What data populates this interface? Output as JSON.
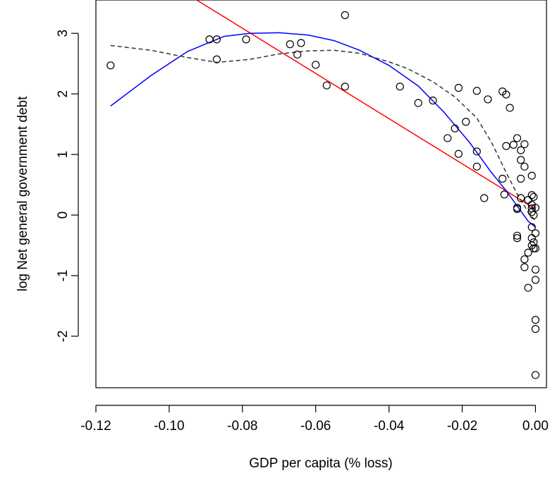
{
  "chart_data": {
    "type": "scatter",
    "title": "",
    "xlabel": "GDP per capita (% loss)",
    "ylabel": "log Net general government debt",
    "xlim": [
      -0.12,
      0.003
    ],
    "ylim": [
      -2.85,
      3.55
    ],
    "xticks": [
      -0.12,
      -0.1,
      -0.08,
      -0.06,
      -0.04,
      -0.02,
      0.0
    ],
    "xtick_labels": [
      "-0.12",
      "-0.10",
      "-0.08",
      "-0.06",
      "-0.04",
      "-0.02",
      "0.00"
    ],
    "yticks": [
      -2,
      -1,
      0,
      1,
      2,
      3
    ],
    "ytick_labels": [
      "-2",
      "-1",
      "0",
      "1",
      "2",
      "3"
    ],
    "grid": false,
    "legend": "none",
    "points": [
      [
        -0.116,
        2.47
      ],
      [
        -0.089,
        2.9
      ],
      [
        -0.087,
        2.9
      ],
      [
        -0.087,
        2.57
      ],
      [
        -0.079,
        2.9
      ],
      [
        -0.067,
        2.82
      ],
      [
        -0.065,
        2.65
      ],
      [
        -0.064,
        2.84
      ],
      [
        -0.06,
        2.48
      ],
      [
        -0.057,
        2.14
      ],
      [
        -0.052,
        3.3
      ],
      [
        -0.052,
        2.12
      ],
      [
        -0.037,
        2.12
      ],
      [
        -0.032,
        1.85
      ],
      [
        -0.028,
        1.89
      ],
      [
        -0.024,
        1.27
      ],
      [
        -0.022,
        1.43
      ],
      [
        -0.021,
        2.1
      ],
      [
        -0.021,
        1.01
      ],
      [
        -0.019,
        1.54
      ],
      [
        -0.016,
        2.05
      ],
      [
        -0.016,
        1.05
      ],
      [
        -0.016,
        0.8
      ],
      [
        -0.014,
        0.28
      ],
      [
        -0.013,
        1.91
      ],
      [
        -0.009,
        0.6
      ],
      [
        -0.009,
        2.04
      ],
      [
        -0.008,
        1.99
      ],
      [
        -0.008,
        1.14
      ],
      [
        -0.0085,
        0.34
      ],
      [
        -0.007,
        1.77
      ],
      [
        -0.006,
        1.16
      ],
      [
        -0.005,
        1.27
      ],
      [
        -0.005,
        0.1
      ],
      [
        -0.005,
        0.12
      ],
      [
        -0.005,
        -0.34
      ],
      [
        -0.005,
        -0.38
      ],
      [
        -0.004,
        1.07
      ],
      [
        -0.004,
        0.91
      ],
      [
        -0.004,
        0.6
      ],
      [
        -0.004,
        0.28
      ],
      [
        -0.003,
        1.17
      ],
      [
        -0.003,
        0.8
      ],
      [
        -0.003,
        -0.73
      ],
      [
        -0.003,
        -0.86
      ],
      [
        -0.002,
        -0.62
      ],
      [
        -0.002,
        -1.2
      ],
      [
        -0.002,
        0.25
      ],
      [
        -0.001,
        0.65
      ],
      [
        -0.001,
        0.33
      ],
      [
        -0.001,
        0.17
      ],
      [
        -0.001,
        0.11
      ],
      [
        -0.001,
        0.05
      ],
      [
        -0.001,
        -0.2
      ],
      [
        -0.001,
        -0.38
      ],
      [
        -0.001,
        -0.5
      ],
      [
        -0.0005,
        0.3
      ],
      [
        -0.0005,
        0.0
      ],
      [
        -0.0005,
        -0.45
      ],
      [
        -0.0005,
        -0.55
      ],
      [
        0.0,
        0.12
      ],
      [
        0.0,
        -0.3
      ],
      [
        0.0,
        -0.9
      ],
      [
        0.0,
        -1.07
      ],
      [
        0.0,
        -1.73
      ],
      [
        0.0,
        -1.88
      ],
      [
        0.0,
        -2.64
      ],
      [
        0.0,
        -0.55
      ]
    ],
    "lines": [
      {
        "color": "#ff0000",
        "style": "solid",
        "x": [
          -0.0925,
          0.0
        ],
        "y": [
          3.55,
          0.1
        ]
      },
      {
        "color": "#0000ff",
        "style": "solid",
        "x": [
          -0.116,
          -0.105,
          -0.095,
          -0.085,
          -0.078,
          -0.07,
          -0.062,
          -0.055,
          -0.048,
          -0.04,
          -0.032,
          -0.025,
          -0.018,
          -0.012,
          -0.008,
          -0.005,
          -0.002,
          0.0
        ],
        "y": [
          1.8,
          2.3,
          2.7,
          2.95,
          3.0,
          3.01,
          2.97,
          2.88,
          2.72,
          2.47,
          2.13,
          1.7,
          1.2,
          0.7,
          0.4,
          0.15,
          -0.1,
          -0.2
        ]
      },
      {
        "color": "#333333",
        "style": "dashed",
        "x": [
          -0.116,
          -0.105,
          -0.095,
          -0.087,
          -0.078,
          -0.07,
          -0.062,
          -0.055,
          -0.048,
          -0.04,
          -0.035,
          -0.028,
          -0.022,
          -0.016,
          -0.012,
          -0.008,
          -0.005,
          -0.002,
          0.0
        ],
        "y": [
          2.8,
          2.72,
          2.6,
          2.52,
          2.57,
          2.66,
          2.71,
          2.72,
          2.67,
          2.53,
          2.42,
          2.2,
          1.95,
          1.6,
          1.2,
          0.7,
          0.35,
          0.05,
          -0.1
        ]
      }
    ]
  }
}
